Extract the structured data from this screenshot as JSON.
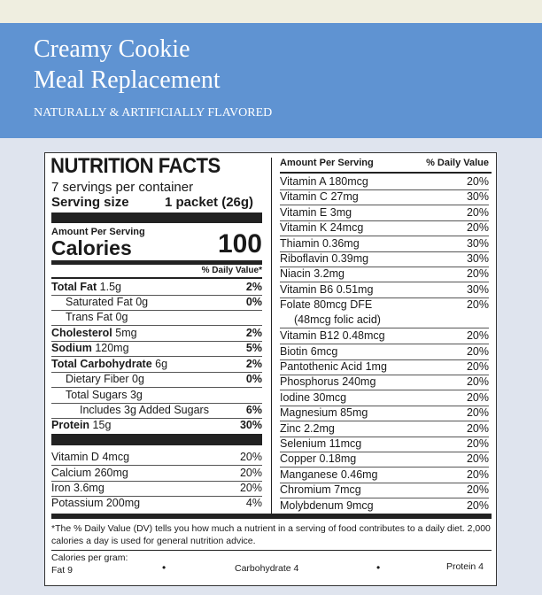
{
  "header": {
    "title_line1": "Creamy Cookie",
    "title_line2": "Meal Replacement",
    "flavor": "NATURALLY & ARTIFICIALLY FLAVORED"
  },
  "label": {
    "title": "NUTRITION FACTS",
    "servings": "7 servings per container",
    "serving_size_label": "Serving size",
    "serving_size_value": "1 packet (26g)",
    "amount_per_serving": "Amount Per Serving",
    "calories_label": "Calories",
    "calories_value": "100",
    "dv_header": "% Daily Value*",
    "nutrients": [
      {
        "name": "Total Fat",
        "amount": "1.5g",
        "dv": "2%"
      },
      {
        "name": "Saturated Fat",
        "amount": "0g",
        "dv": "0%"
      },
      {
        "name": "Trans Fat",
        "amount": "0g"
      },
      {
        "name": "Cholesterol",
        "amount": "5mg",
        "dv": "2%"
      },
      {
        "name": "Sodium",
        "amount": "120mg",
        "dv": "5%"
      },
      {
        "name": "Total Carbohydrate",
        "amount": "6g",
        "dv": "2%"
      },
      {
        "name": "Dietary Fiber",
        "amount": "0g",
        "dv": "0%"
      },
      {
        "name": "Total Sugars",
        "amount": "3g"
      },
      {
        "name": "Includes 3g Added Sugars",
        "dv": "6%"
      },
      {
        "name": "Protein",
        "amount": "15g",
        "dv": "30%"
      }
    ],
    "left_micros": [
      {
        "name": "Vitamin D",
        "amount": "4mcg",
        "dv": "20%"
      },
      {
        "name": "Calcium",
        "amount": "260mg",
        "dv": "20%"
      },
      {
        "name": "Iron",
        "amount": "3.6mg",
        "dv": "20%"
      },
      {
        "name": "Potassium",
        "amount": "200mg",
        "dv": "4%"
      }
    ],
    "right_header_amount": "Amount Per Serving",
    "right_header_dv": "% Daily Value",
    "right_micros": [
      {
        "name": "Vitamin A",
        "amount": "180mcg",
        "dv": "20%"
      },
      {
        "name": "Vitamin C",
        "amount": "27mg",
        "dv": "30%"
      },
      {
        "name": "Vitamin E",
        "amount": "3mg",
        "dv": "20%"
      },
      {
        "name": "Vitamin K",
        "amount": "24mcg",
        "dv": "20%"
      },
      {
        "name": "Thiamin",
        "amount": "0.36mg",
        "dv": "30%"
      },
      {
        "name": "Riboflavin",
        "amount": "0.39mg",
        "dv": "30%"
      },
      {
        "name": "Niacin",
        "amount": "3.2mg",
        "dv": "20%"
      },
      {
        "name": "Vitamin B6",
        "amount": "0.51mg",
        "dv": "30%"
      },
      {
        "name": "Folate",
        "amount": "80mcg DFE",
        "dv": "20%",
        "note": "(48mcg folic acid)"
      },
      {
        "name": "Vitamin B12",
        "amount": "0.48mcg",
        "dv": "20%"
      },
      {
        "name": "Biotin",
        "amount": "6mcg",
        "dv": "20%"
      },
      {
        "name": "Pantothenic Acid",
        "amount": "1mg",
        "dv": "20%"
      },
      {
        "name": "Phosphorus",
        "amount": "240mg",
        "dv": "20%"
      },
      {
        "name": "Iodine",
        "amount": "30mcg",
        "dv": "20%"
      },
      {
        "name": "Magnesium",
        "amount": "85mg",
        "dv": "20%"
      },
      {
        "name": "Zinc",
        "amount": "2.2mg",
        "dv": "20%"
      },
      {
        "name": "Selenium",
        "amount": "11mcg",
        "dv": "20%"
      },
      {
        "name": "Copper",
        "amount": "0.18mg",
        "dv": "20%"
      },
      {
        "name": "Manganese",
        "amount": "0.46mg",
        "dv": "20%"
      },
      {
        "name": "Chromium",
        "amount": "7mcg",
        "dv": "20%"
      },
      {
        "name": "Molybdenum",
        "amount": "9mcg",
        "dv": "20%"
      }
    ],
    "footnote": "*The % Daily Value (DV) tells you how much a nutrient in a serving of food contributes to a daily diet. 2,000 calories a day is used for general nutrition advice.",
    "calories_per_gram": "Calories per gram:",
    "fat_per_gram": "Fat 9",
    "carb_per_gram": "Carbohydrate 4",
    "protein_per_gram": "Protein 4"
  }
}
